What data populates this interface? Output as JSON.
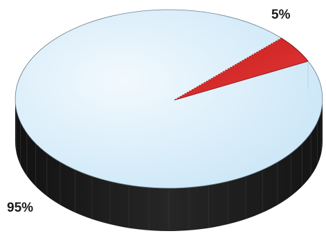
{
  "chart_data": {
    "type": "pie",
    "style": "3d",
    "slices": [
      {
        "label": "95%",
        "value": 95,
        "color": "#d6ecf8"
      },
      {
        "label": "5%",
        "value": 5,
        "color": "#d42a2a"
      }
    ],
    "side_color": "#1c1c1c"
  }
}
